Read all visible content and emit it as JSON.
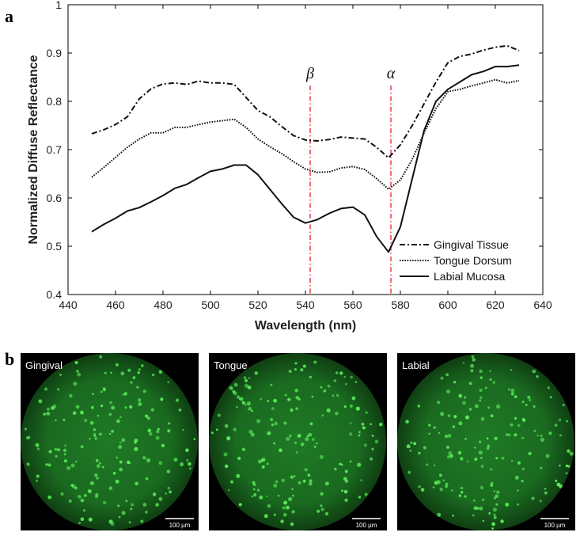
{
  "panel_a_label": "a",
  "panel_b_label": "b",
  "chart_data": {
    "type": "line",
    "title": "",
    "xlabel": "Wavelength (nm)",
    "ylabel": "Normalized Diffuse Reflectance",
    "xlim": [
      440,
      640
    ],
    "ylim": [
      0.4,
      1.0
    ],
    "xticks": [
      440,
      460,
      480,
      500,
      520,
      540,
      560,
      580,
      600,
      620,
      640
    ],
    "yticks": [
      0.4,
      0.5,
      0.6,
      0.7,
      0.8,
      0.9,
      1.0
    ],
    "ytick_labels": [
      "0.4",
      "0.5",
      "0.6",
      "0.7",
      "0.8",
      "0.9",
      "1"
    ],
    "legend_position": "bottom-right",
    "x": [
      450,
      455,
      460,
      465,
      470,
      475,
      480,
      485,
      490,
      495,
      500,
      505,
      510,
      515,
      520,
      525,
      530,
      535,
      540,
      545,
      550,
      555,
      560,
      565,
      570,
      575,
      580,
      585,
      590,
      595,
      600,
      605,
      610,
      615,
      620,
      625,
      630
    ],
    "series": [
      {
        "name": "Gingival Tissue",
        "style": "dash-dot",
        "values": [
          0.733,
          0.741,
          0.752,
          0.768,
          0.805,
          0.826,
          0.836,
          0.838,
          0.835,
          0.842,
          0.838,
          0.838,
          0.835,
          0.808,
          0.781,
          0.768,
          0.748,
          0.729,
          0.72,
          0.718,
          0.721,
          0.726,
          0.724,
          0.722,
          0.705,
          0.683,
          0.71,
          0.75,
          0.795,
          0.84,
          0.88,
          0.893,
          0.898,
          0.906,
          0.912,
          0.915,
          0.905
        ]
      },
      {
        "name": "Tongue Dorsum",
        "style": "dotted",
        "values": [
          0.643,
          0.663,
          0.684,
          0.705,
          0.722,
          0.735,
          0.735,
          0.746,
          0.746,
          0.752,
          0.757,
          0.76,
          0.763,
          0.746,
          0.722,
          0.706,
          0.692,
          0.675,
          0.66,
          0.653,
          0.654,
          0.662,
          0.665,
          0.659,
          0.64,
          0.618,
          0.637,
          0.68,
          0.735,
          0.785,
          0.82,
          0.825,
          0.832,
          0.838,
          0.845,
          0.838,
          0.843
        ]
      },
      {
        "name": "Labial Mucosa",
        "style": "solid",
        "values": [
          0.53,
          0.545,
          0.558,
          0.573,
          0.58,
          0.592,
          0.605,
          0.62,
          0.628,
          0.642,
          0.655,
          0.66,
          0.668,
          0.668,
          0.648,
          0.618,
          0.588,
          0.56,
          0.548,
          0.555,
          0.568,
          0.578,
          0.581,
          0.565,
          0.52,
          0.488,
          0.54,
          0.64,
          0.74,
          0.8,
          0.825,
          0.84,
          0.855,
          0.862,
          0.872,
          0.872,
          0.875
        ]
      }
    ],
    "annotations": [
      {
        "label": "β",
        "x": 542
      },
      {
        "label": "α",
        "x": 576
      }
    ]
  },
  "micrographs": [
    {
      "label": "Gingival",
      "scale_bar": "100 µm"
    },
    {
      "label": "Tongue",
      "scale_bar": "100 µm"
    },
    {
      "label": "Labial",
      "scale_bar": "100 µm"
    }
  ]
}
